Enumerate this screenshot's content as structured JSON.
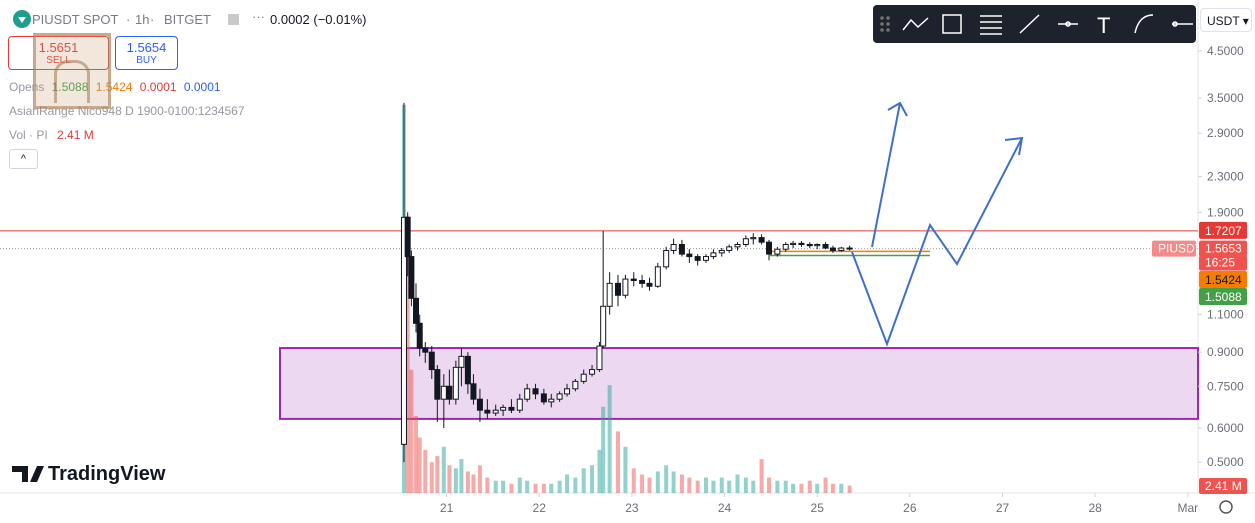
{
  "header": {
    "symbol": "PIUSDT SPOT",
    "interval": "1h",
    "exchange": "BITGET",
    "change": "0.0002 (−0.01%)"
  },
  "trade": {
    "sell_price": "1.5651",
    "sell_label": "SELL",
    "buy_price": "1.5654",
    "buy_label": "BUY"
  },
  "indicators": {
    "opens": {
      "name": "Opens",
      "extra": [
        "0.0001",
        "0.0001"
      ]
    },
    "asian_range": "AsianRange Nico948 D 1900-0100:1234567",
    "volume": "Vol · PI"
  },
  "toolbar": {
    "currency": "USDT"
  },
  "branding": "TradingView",
  "chart_data": {
    "type": "candlestick",
    "log_scale": true,
    "x": [
      20.54,
      20.58,
      20.62,
      20.67,
      20.71,
      20.77,
      20.84,
      20.9,
      20.97,
      21.03,
      21.1,
      21.16,
      21.23,
      21.29,
      21.36,
      21.44,
      21.53,
      21.61,
      21.7,
      21.79,
      21.87,
      21.96,
      22.05,
      22.13,
      22.22,
      22.3,
      22.39,
      22.48,
      22.57,
      22.65,
      22.69,
      22.76,
      22.85,
      22.93,
      23.02,
      23.11,
      23.19,
      23.28,
      23.37,
      23.45,
      23.54,
      23.62,
      23.71,
      23.8,
      23.88,
      23.97,
      24.05,
      24.14,
      24.23,
      24.31,
      24.4,
      24.48,
      24.57,
      24.66,
      24.74,
      24.83,
      24.92,
      25.0,
      25.09,
      25.17,
      25.26,
      25.35
    ],
    "open": [
      0.55,
      1.85,
      1.5,
      1.2,
      1.05,
      0.92,
      0.9,
      0.82,
      0.7,
      0.75,
      0.7,
      0.83,
      0.88,
      0.76,
      0.7,
      0.66,
      0.65,
      0.66,
      0.67,
      0.66,
      0.7,
      0.74,
      0.72,
      0.69,
      0.7,
      0.72,
      0.74,
      0.77,
      0.8,
      0.82,
      0.93,
      1.15,
      1.3,
      1.22,
      1.33,
      1.32,
      1.3,
      1.28,
      1.42,
      1.55,
      1.6,
      1.52,
      1.5,
      1.47,
      1.5,
      1.53,
      1.55,
      1.58,
      1.6,
      1.65,
      1.66,
      1.62,
      1.52,
      1.56,
      1.6,
      1.61,
      1.6,
      1.59,
      1.6,
      1.57,
      1.55,
      1.57
    ],
    "high": [
      3.41,
      1.9,
      1.55,
      1.3,
      1.1,
      0.95,
      0.93,
      0.84,
      0.8,
      0.82,
      0.86,
      0.92,
      0.9,
      0.8,
      0.74,
      0.7,
      0.68,
      0.68,
      0.7,
      0.72,
      0.76,
      0.76,
      0.74,
      0.72,
      0.73,
      0.76,
      0.78,
      0.82,
      0.84,
      0.95,
      1.72,
      1.38,
      1.36,
      1.36,
      1.38,
      1.36,
      1.34,
      1.45,
      1.58,
      1.65,
      1.64,
      1.56,
      1.52,
      1.52,
      1.56,
      1.57,
      1.6,
      1.62,
      1.68,
      1.7,
      1.69,
      1.64,
      1.58,
      1.62,
      1.63,
      1.63,
      1.62,
      1.61,
      1.62,
      1.59,
      1.58,
      1.59
    ],
    "low": [
      0.5,
      1.35,
      1.15,
      1.0,
      0.88,
      0.85,
      0.78,
      0.62,
      0.6,
      0.68,
      0.68,
      0.75,
      0.72,
      0.68,
      0.62,
      0.63,
      0.64,
      0.64,
      0.65,
      0.65,
      0.69,
      0.7,
      0.68,
      0.67,
      0.69,
      0.71,
      0.73,
      0.76,
      0.79,
      0.81,
      0.92,
      1.1,
      1.15,
      1.2,
      1.28,
      1.27,
      1.25,
      1.27,
      1.4,
      1.52,
      1.5,
      1.45,
      1.43,
      1.45,
      1.48,
      1.5,
      1.53,
      1.55,
      1.58,
      1.6,
      1.6,
      1.47,
      1.5,
      1.54,
      1.57,
      1.58,
      1.57,
      1.56,
      1.56,
      1.53,
      1.54,
      1.55
    ],
    "close": [
      1.85,
      1.5,
      1.2,
      1.05,
      0.92,
      0.9,
      0.82,
      0.7,
      0.75,
      0.7,
      0.83,
      0.88,
      0.76,
      0.7,
      0.66,
      0.65,
      0.66,
      0.67,
      0.66,
      0.7,
      0.74,
      0.72,
      0.69,
      0.7,
      0.72,
      0.74,
      0.77,
      0.8,
      0.82,
      0.93,
      1.15,
      1.3,
      1.22,
      1.33,
      1.32,
      1.3,
      1.28,
      1.42,
      1.55,
      1.6,
      1.52,
      1.5,
      1.47,
      1.5,
      1.53,
      1.55,
      1.58,
      1.6,
      1.65,
      1.66,
      1.62,
      1.52,
      1.56,
      1.6,
      1.61,
      1.6,
      1.59,
      1.6,
      1.57,
      1.55,
      1.57,
      1.5653
    ],
    "volume": [
      126,
      90,
      40,
      25,
      18,
      14,
      10,
      12,
      15,
      9,
      8,
      11,
      7,
      6,
      9,
      5,
      4,
      4,
      3,
      5,
      4,
      3,
      3,
      3,
      4,
      6,
      5,
      8,
      9,
      14,
      28,
      35,
      20,
      15,
      8,
      6,
      5,
      7,
      9,
      7,
      6,
      5,
      4,
      5,
      4,
      5,
      4,
      6,
      5,
      4,
      11,
      5,
      4,
      4,
      3,
      3,
      4,
      3,
      5,
      3,
      3,
      2.41
    ],
    "last_volume_label": "2.41 M",
    "volume_lim": [
      0,
      160
    ],
    "xlim": [
      16.18,
      29.11
    ],
    "ylim": [
      0.424,
      5.91
    ],
    "yticks": [
      {
        "value": 4.5,
        "label": "4.5000"
      },
      {
        "value": 3.5,
        "label": "3.5000"
      },
      {
        "value": 2.9,
        "label": "2.9000"
      },
      {
        "value": 2.3,
        "label": "2.3000"
      },
      {
        "value": 1.9,
        "label": "1.9000"
      },
      {
        "value": 1.1,
        "label": "1.1000"
      },
      {
        "value": 0.9,
        "label": "0.9000"
      },
      {
        "value": 0.75,
        "label": "0.7500"
      },
      {
        "value": 0.6,
        "label": "0.6000"
      },
      {
        "value": 0.5,
        "label": "0.5000"
      }
    ],
    "xticks": [
      21,
      22,
      23,
      24,
      25,
      26,
      27,
      28,
      {
        "value": 29,
        "label": "Mar"
      }
    ],
    "levels": [
      {
        "value": 1.7207,
        "color": "#e53935"
      },
      {
        "value": 1.5424,
        "color": "#f57c00"
      },
      {
        "value": 1.5088,
        "color": "#43a047"
      }
    ],
    "last_price": 1.5653,
    "symbol_tag": "PIUSDT",
    "countdown": "16:25",
    "zone": [
      0.63,
      0.92
    ],
    "zone_color": "#9c27b0"
  }
}
